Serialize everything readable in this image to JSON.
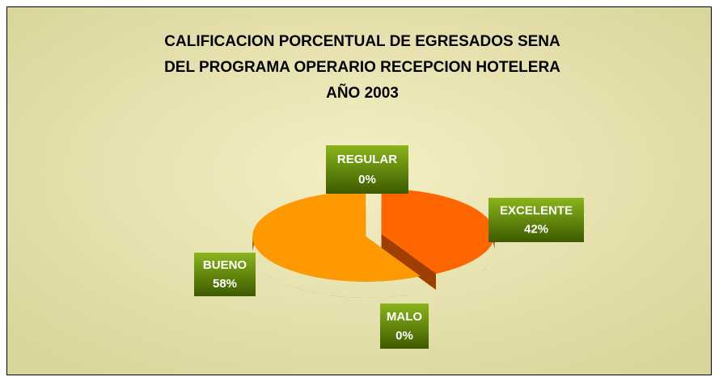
{
  "chart_data": {
    "type": "pie",
    "title": [
      "CALIFICACION PORCENTUAL DE EGRESADOS SENA",
      "DEL PROGRAMA OPERARIO RECEPCION HOTELERA",
      "AÑO 2003"
    ],
    "categories": [
      "EXCELENTE",
      "BUENO",
      "MALO",
      "REGULAR"
    ],
    "values": [
      42,
      58,
      0,
      0
    ],
    "value_labels": [
      "42%",
      "58%",
      "0%",
      "0%"
    ],
    "colors": [
      "#ff6600",
      "#ff9900",
      "#cc3300",
      "#ffcc00"
    ]
  }
}
